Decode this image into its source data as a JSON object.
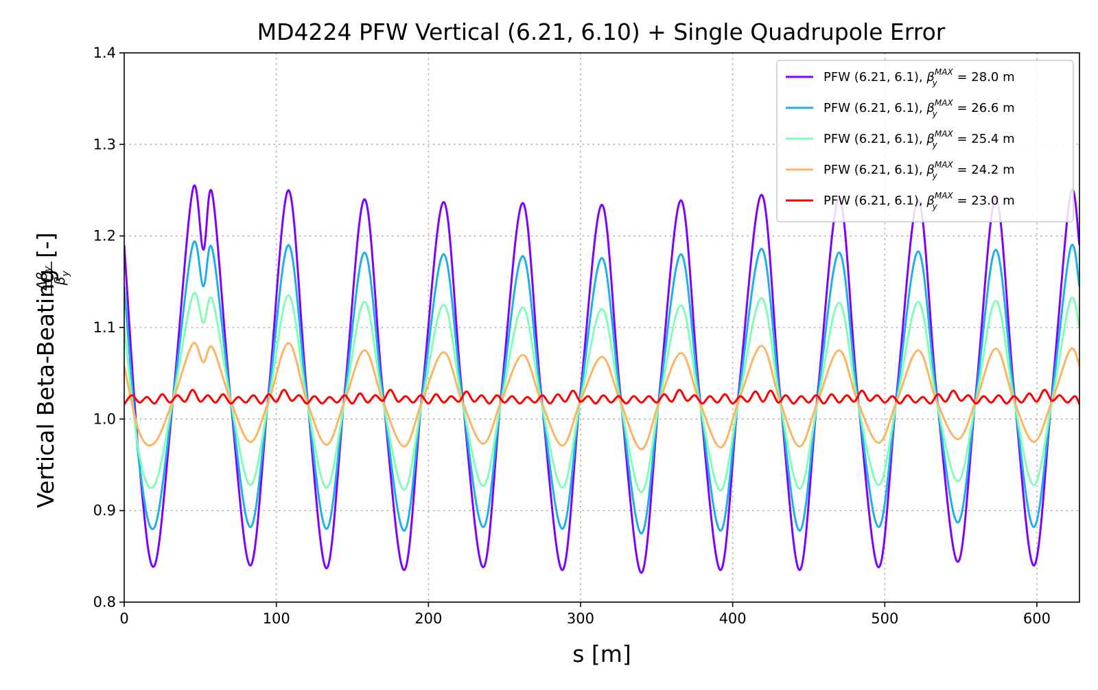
{
  "chart_data": {
    "type": "line",
    "title": "MD4224 PFW Vertical (6.21, 6.10) + Single Quadrupole Error",
    "xlabel": "s [m]",
    "ylabel": "Vertical Beta-Beating",
    "ylabel_fraction_num": "Δβ",
    "ylabel_fraction_num_sub": "y",
    "ylabel_fraction_den": "β",
    "ylabel_fraction_den_sub": "y",
    "ylabel_unit": "[-]",
    "xlim": [
      0,
      628
    ],
    "ylim": [
      0.8,
      1.4
    ],
    "xticks": [
      0,
      100,
      200,
      300,
      400,
      500,
      600
    ],
    "xtick_labels": [
      "0",
      "100",
      "200",
      "300",
      "400",
      "500",
      "600"
    ],
    "yticks": [
      0.8,
      0.9,
      1.0,
      1.1,
      1.2,
      1.3,
      1.4
    ],
    "ytick_labels": [
      "0.8",
      "0.9",
      "1.0",
      "1.1",
      "1.2",
      "1.3",
      "1.4"
    ],
    "grid": true,
    "legend_position": "top-right",
    "legend": [
      {
        "prefix": "PFW (6.21, 6.1), ",
        "beta": "β",
        "sub": "y",
        "sup": "MAX",
        "suffix": " = 28.0 m",
        "color": "#7f00ff"
      },
      {
        "prefix": "PFW (6.21, 6.1), ",
        "beta": "β",
        "sub": "y",
        "sup": "MAX",
        "suffix": " = 26.6 m",
        "color": "#1cb0e8"
      },
      {
        "prefix": "PFW (6.21, 6.1), ",
        "beta": "β",
        "sub": "y",
        "sup": "MAX",
        "suffix": " = 25.4 m",
        "color": "#80ffb4"
      },
      {
        "prefix": "PFW (6.21, 6.1), ",
        "beta": "β",
        "sub": "y",
        "sup": "MAX",
        "suffix": " = 24.2 m",
        "color": "#ffb360"
      },
      {
        "prefix": "PFW (6.21, 6.1), ",
        "beta": "β",
        "sub": "y",
        "sup": "MAX",
        "suffix": " = 23.0 m",
        "color": "#ff0000"
      }
    ],
    "series": [
      {
        "color": "#7f00ff",
        "x": [
          0,
          10,
          20,
          32,
          45,
          52,
          58,
          70,
          83,
          95,
          108,
          120,
          133,
          145,
          158,
          170,
          184,
          196,
          210,
          222,
          236,
          248,
          262,
          274,
          288,
          300,
          314,
          326,
          340,
          352,
          366,
          378,
          392,
          404,
          419,
          431,
          444,
          456,
          470,
          482,
          496,
          508,
          522,
          534,
          548,
          560,
          573,
          585,
          598,
          610,
          622,
          628
        ],
        "y": [
          1.19,
          0.95,
          0.84,
          1.02,
          1.25,
          1.185,
          1.245,
          1.02,
          0.84,
          1.03,
          1.25,
          1.03,
          0.837,
          1.03,
          1.24,
          1.03,
          0.835,
          1.03,
          1.237,
          1.03,
          0.838,
          1.03,
          1.236,
          1.03,
          0.835,
          1.03,
          1.234,
          1.03,
          0.832,
          1.03,
          1.239,
          1.03,
          0.835,
          1.03,
          1.245,
          1.03,
          0.835,
          1.03,
          1.241,
          1.03,
          0.838,
          1.03,
          1.239,
          1.03,
          0.844,
          1.03,
          1.241,
          1.03,
          0.84,
          1.03,
          1.245,
          1.19
        ]
      },
      {
        "color": "#1cb0e8",
        "x": [
          0,
          10,
          20,
          32,
          45,
          52,
          58,
          70,
          83,
          95,
          108,
          120,
          133,
          145,
          158,
          170,
          184,
          196,
          210,
          222,
          236,
          248,
          262,
          274,
          288,
          300,
          314,
          326,
          340,
          352,
          366,
          378,
          392,
          404,
          419,
          431,
          444,
          456,
          470,
          482,
          496,
          508,
          522,
          534,
          548,
          560,
          573,
          585,
          598,
          610,
          622,
          628
        ],
        "y": [
          1.145,
          0.95,
          0.882,
          1.02,
          1.19,
          1.145,
          1.185,
          1.02,
          0.882,
          1.025,
          1.19,
          1.025,
          0.88,
          1.025,
          1.182,
          1.025,
          0.878,
          1.025,
          1.18,
          1.025,
          0.882,
          1.025,
          1.178,
          1.025,
          0.88,
          1.025,
          1.176,
          1.025,
          0.875,
          1.025,
          1.18,
          1.025,
          0.878,
          1.025,
          1.186,
          1.025,
          0.878,
          1.025,
          1.182,
          1.025,
          0.882,
          1.025,
          1.183,
          1.025,
          0.887,
          1.025,
          1.185,
          1.025,
          0.882,
          1.025,
          1.186,
          1.145
        ]
      },
      {
        "color": "#80ffb4",
        "x": [
          0,
          10,
          20,
          32,
          45,
          52,
          58,
          70,
          83,
          95,
          108,
          120,
          133,
          145,
          158,
          170,
          184,
          196,
          210,
          222,
          236,
          248,
          262,
          274,
          288,
          300,
          314,
          326,
          340,
          352,
          366,
          378,
          392,
          404,
          419,
          431,
          444,
          456,
          470,
          482,
          496,
          508,
          522,
          534,
          548,
          560,
          573,
          585,
          598,
          610,
          622,
          628
        ],
        "y": [
          1.1,
          0.96,
          0.928,
          1.02,
          1.135,
          1.105,
          1.13,
          1.02,
          0.928,
          1.02,
          1.135,
          1.02,
          0.925,
          1.02,
          1.128,
          1.02,
          0.923,
          1.02,
          1.125,
          1.02,
          0.927,
          1.02,
          1.122,
          1.02,
          0.925,
          1.02,
          1.12,
          1.02,
          0.92,
          1.02,
          1.124,
          1.02,
          0.922,
          1.02,
          1.132,
          1.02,
          0.924,
          1.02,
          1.127,
          1.02,
          0.928,
          1.02,
          1.128,
          1.02,
          0.932,
          1.02,
          1.129,
          1.02,
          0.928,
          1.02,
          1.13,
          1.1
        ]
      },
      {
        "color": "#ffb360",
        "x": [
          0,
          10,
          20,
          32,
          45,
          52,
          58,
          70,
          83,
          95,
          108,
          120,
          133,
          145,
          158,
          170,
          184,
          196,
          210,
          222,
          236,
          248,
          262,
          274,
          288,
          300,
          314,
          326,
          340,
          352,
          366,
          378,
          392,
          404,
          419,
          431,
          444,
          456,
          470,
          482,
          496,
          508,
          522,
          534,
          548,
          560,
          573,
          585,
          598,
          610,
          622,
          628
        ],
        "y": [
          1.058,
          0.985,
          0.974,
          1.02,
          1.082,
          1.062,
          1.078,
          1.02,
          0.975,
          1.02,
          1.083,
          1.02,
          0.972,
          1.02,
          1.075,
          1.02,
          0.97,
          1.02,
          1.073,
          1.02,
          0.973,
          1.02,
          1.07,
          1.02,
          0.971,
          1.02,
          1.068,
          1.02,
          0.967,
          1.02,
          1.072,
          1.02,
          0.969,
          1.02,
          1.08,
          1.02,
          0.97,
          1.02,
          1.075,
          1.02,
          0.974,
          1.02,
          1.075,
          1.02,
          0.978,
          1.02,
          1.077,
          1.02,
          0.975,
          1.02,
          1.076,
          1.058
        ]
      },
      {
        "color": "#ff0000",
        "x": [
          0,
          5,
          10,
          15,
          20,
          25,
          30,
          35,
          40,
          45,
          50,
          55,
          60,
          65,
          70,
          75,
          80,
          85,
          90,
          95,
          100,
          105,
          110,
          115,
          120,
          125,
          130,
          135,
          140,
          145,
          150,
          155,
          160,
          165,
          170,
          175,
          180,
          185,
          190,
          195,
          200,
          205,
          210,
          215,
          220,
          225,
          230,
          235,
          240,
          245,
          250,
          255,
          260,
          265,
          270,
          275,
          280,
          285,
          290,
          295,
          300,
          305,
          310,
          315,
          320,
          325,
          330,
          335,
          340,
          345,
          350,
          355,
          360,
          365,
          370,
          375,
          380,
          385,
          390,
          395,
          400,
          405,
          410,
          415,
          420,
          425,
          430,
          435,
          440,
          445,
          450,
          455,
          460,
          465,
          470,
          475,
          480,
          485,
          490,
          495,
          500,
          505,
          510,
          515,
          520,
          525,
          530,
          535,
          540,
          545,
          550,
          555,
          560,
          565,
          570,
          575,
          580,
          585,
          590,
          595,
          600,
          605,
          610,
          615,
          620,
          625,
          628
        ],
        "y": [
          1.016,
          1.026,
          1.018,
          1.024,
          1.017,
          1.027,
          1.018,
          1.026,
          1.019,
          1.032,
          1.019,
          1.026,
          1.018,
          1.027,
          1.017,
          1.024,
          1.018,
          1.026,
          1.017,
          1.027,
          1.019,
          1.032,
          1.02,
          1.026,
          1.017,
          1.025,
          1.017,
          1.024,
          1.018,
          1.026,
          1.017,
          1.028,
          1.018,
          1.026,
          1.02,
          1.032,
          1.019,
          1.025,
          1.018,
          1.026,
          1.017,
          1.027,
          1.018,
          1.025,
          1.019,
          1.03,
          1.019,
          1.026,
          1.017,
          1.026,
          1.018,
          1.025,
          1.017,
          1.024,
          1.018,
          1.026,
          1.017,
          1.027,
          1.019,
          1.031,
          1.019,
          1.025,
          1.017,
          1.026,
          1.018,
          1.025,
          1.017,
          1.025,
          1.018,
          1.025,
          1.018,
          1.027,
          1.019,
          1.032,
          1.02,
          1.026,
          1.017,
          1.025,
          1.018,
          1.027,
          1.017,
          1.025,
          1.019,
          1.03,
          1.019,
          1.031,
          1.018,
          1.026,
          1.017,
          1.025,
          1.018,
          1.026,
          1.017,
          1.027,
          1.018,
          1.026,
          1.019,
          1.031,
          1.02,
          1.026,
          1.018,
          1.025,
          1.017,
          1.026,
          1.018,
          1.024,
          1.017,
          1.027,
          1.019,
          1.031,
          1.02,
          1.026,
          1.017,
          1.025,
          1.018,
          1.026,
          1.017,
          1.025,
          1.018,
          1.028,
          1.019,
          1.032,
          1.02,
          1.026,
          1.018,
          1.025,
          1.016
        ]
      }
    ]
  }
}
